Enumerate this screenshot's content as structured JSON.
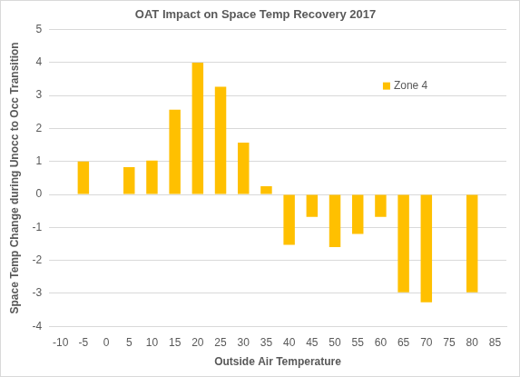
{
  "chart_data": {
    "type": "bar",
    "title": "OAT Impact on Space Temp Recovery 2017",
    "x_label": "Outside Air Temperature",
    "y_label": "Space Temp Change during Unocc to Occ Transition",
    "categories": [
      -10,
      -5,
      0,
      5,
      10,
      15,
      20,
      25,
      30,
      35,
      40,
      45,
      50,
      55,
      60,
      65,
      70,
      75,
      80,
      85
    ],
    "series": [
      {
        "name": "Zone 4",
        "color": "#ffc000",
        "values": [
          null,
          1.0,
          null,
          0.83,
          1.03,
          2.57,
          4.0,
          3.27,
          1.57,
          0.25,
          -1.53,
          -0.68,
          -1.6,
          -1.2,
          -0.68,
          -2.97,
          -3.27,
          null,
          -2.97,
          null
        ]
      }
    ],
    "ylim": [
      -4,
      5
    ],
    "yticks": [
      -4,
      -3,
      -2,
      -1,
      0,
      1,
      2,
      3,
      4,
      5
    ],
    "grid": true,
    "legend": "upper right"
  }
}
